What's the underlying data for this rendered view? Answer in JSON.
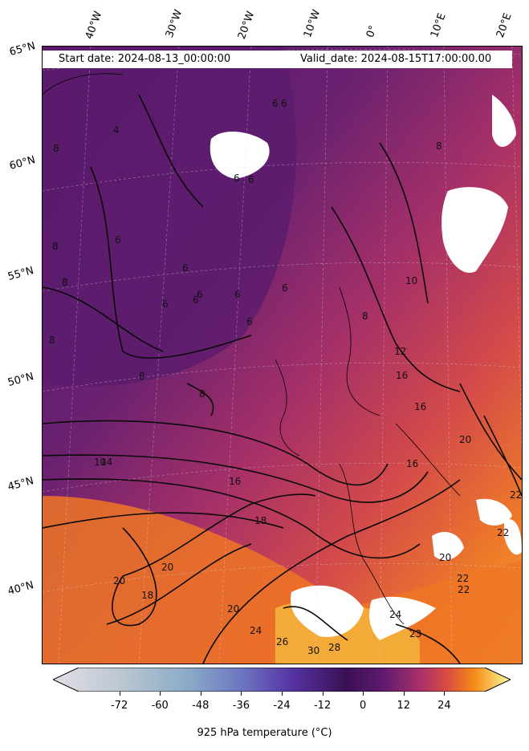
{
  "header": {
    "start_date": "Start date: 2024-08-13_00:00:00",
    "valid_date": "Valid_date: 2024-08-15T17:00:00.00"
  },
  "longitude_labels": [
    "40°W",
    "30°W",
    "20°W",
    "10°W",
    "0°",
    "10°E",
    "20°E"
  ],
  "latitude_labels": [
    "65°N",
    "60°N",
    "55°N",
    "50°N",
    "45°N",
    "40°N"
  ],
  "contour_labels": [
    "4",
    "6",
    "6",
    "6",
    "6",
    "6",
    "6",
    "6",
    "6",
    "6",
    "6",
    "6",
    "6",
    "8",
    "8",
    "8",
    "8",
    "8",
    "8",
    "8",
    "8",
    "10",
    "10",
    "12",
    "14",
    "16",
    "16",
    "16",
    "16",
    "18",
    "18",
    "20",
    "20",
    "20",
    "20",
    "20",
    "22",
    "22",
    "22",
    "22",
    "23",
    "24",
    "24",
    "26",
    "28",
    "30"
  ],
  "colorbar": {
    "ticks": [
      "-72",
      "-60",
      "-48",
      "-36",
      "-24",
      "-12",
      "0",
      "12",
      "24"
    ],
    "label": "925 hPa temperature ($^\\circ$C)",
    "label_display": "925 hPa temperature (°C)",
    "colormap": "inferno-like",
    "range": [
      -84,
      36
    ]
  },
  "colors": {
    "cold_purple": "#5a1a6e",
    "mid_magenta": "#a3306a",
    "warm_red": "#d4504a",
    "hot_orange": "#f08020",
    "hottest_yellow": "#f7c94a",
    "land_mask": "#ffffff"
  }
}
